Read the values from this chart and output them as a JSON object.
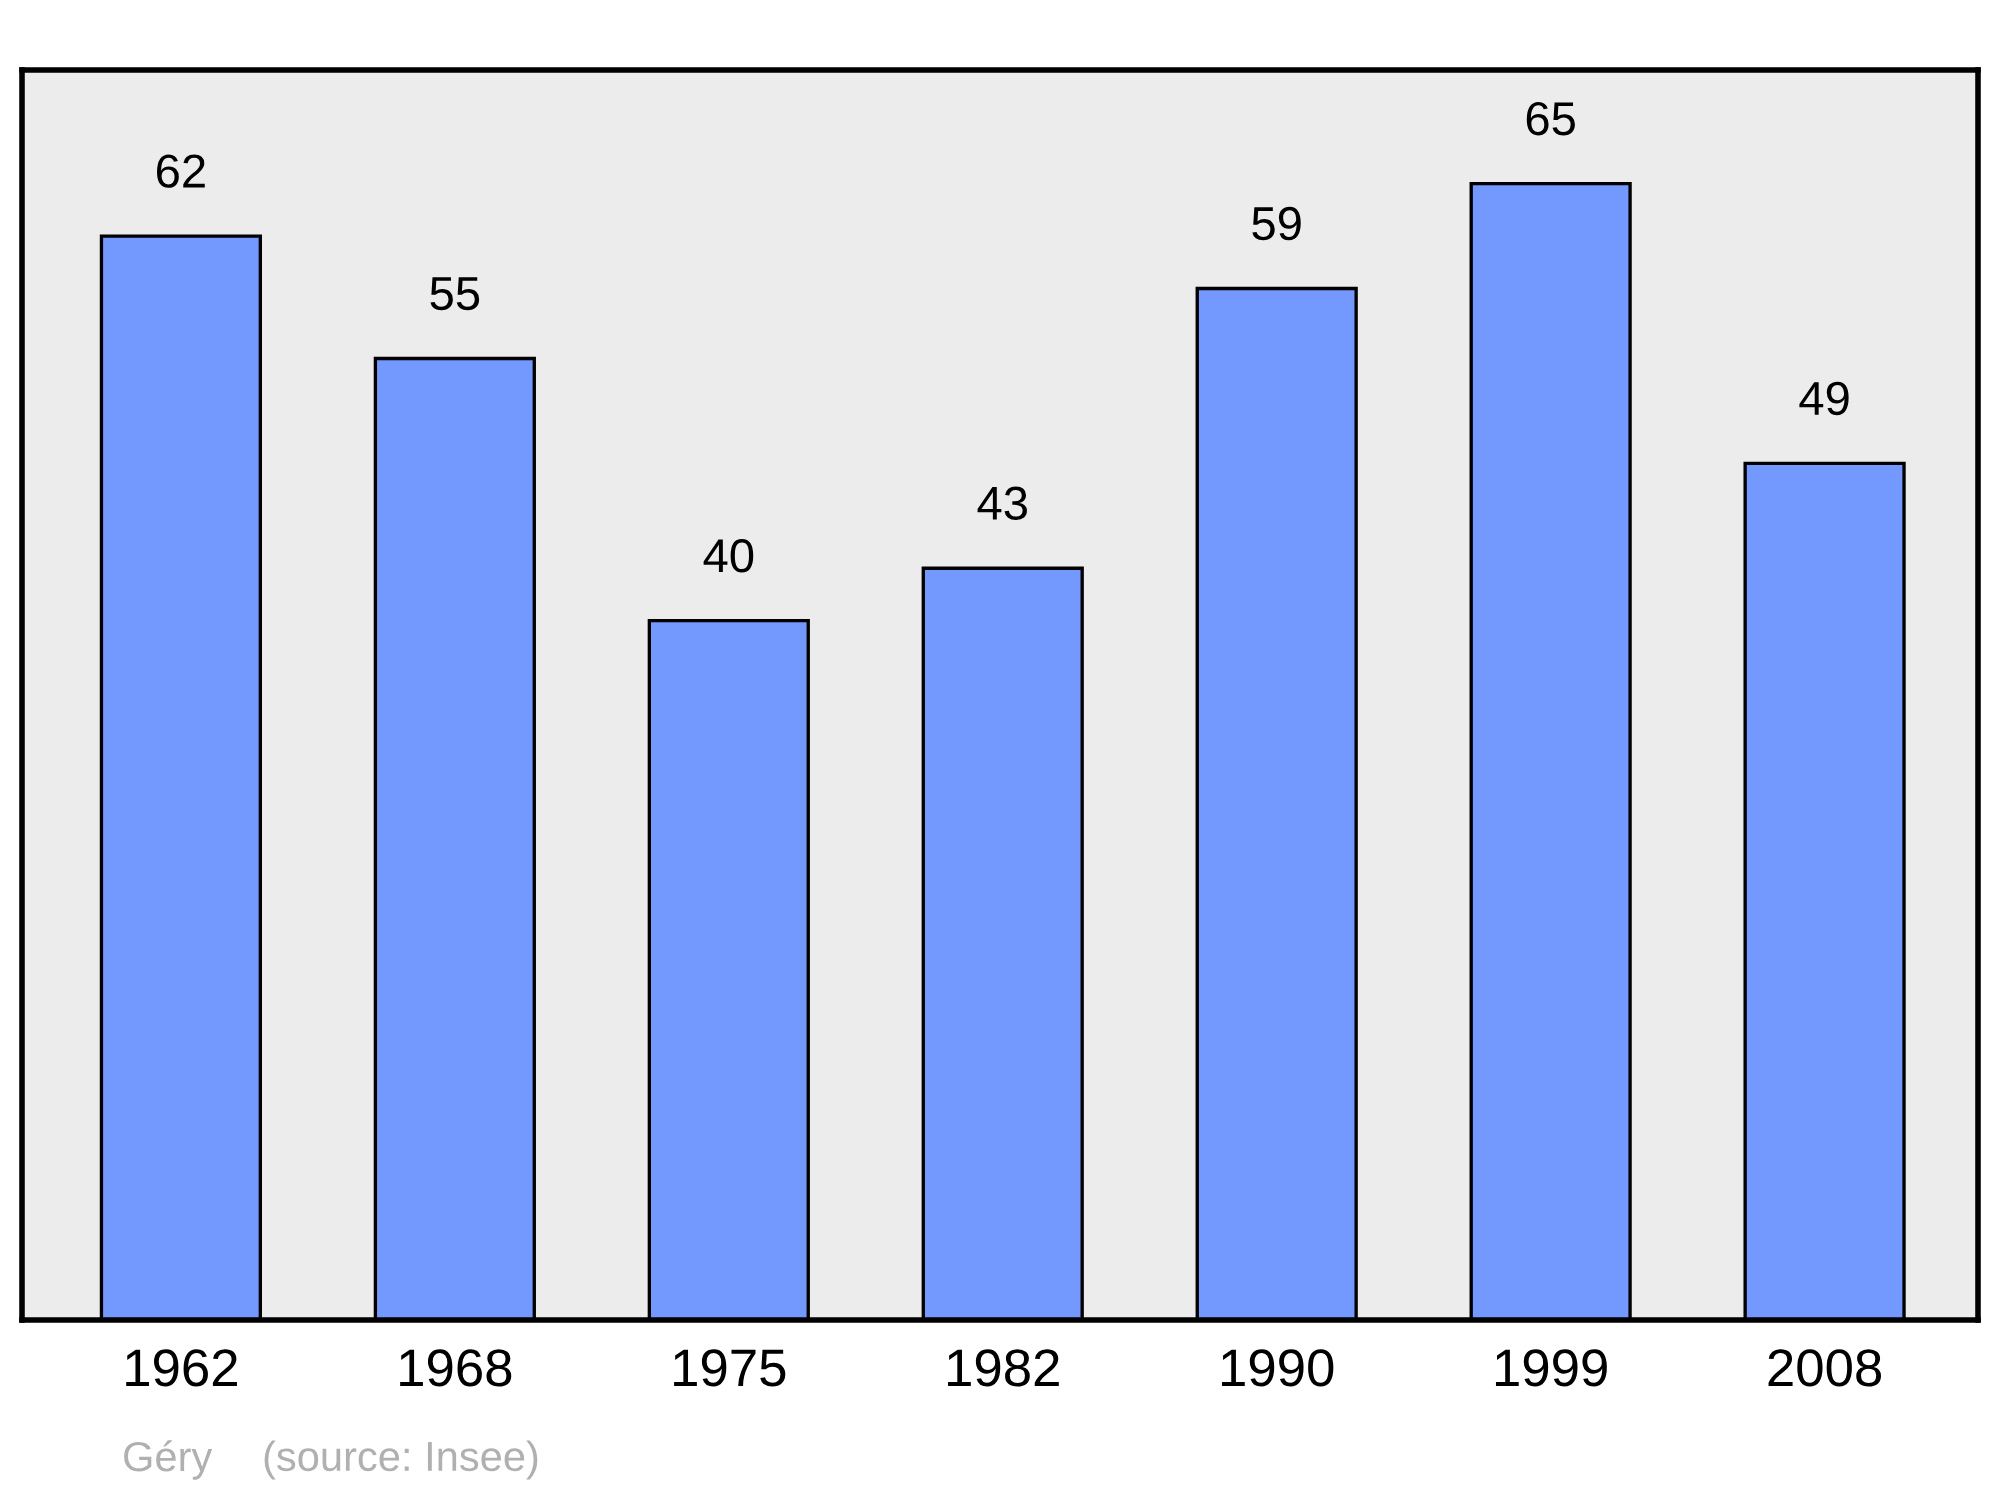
{
  "chart_data": {
    "type": "bar",
    "categories": [
      "1962",
      "1968",
      "1975",
      "1982",
      "1990",
      "1999",
      "2008"
    ],
    "values": [
      62,
      55,
      40,
      43,
      59,
      65,
      49
    ],
    "color": "#7399ff",
    "ylim": [
      0,
      71.5
    ],
    "tick_labels": "x",
    "data_labels": true,
    "grid": false,
    "legend": false,
    "annotations": [
      "Géry",
      "(source: Insee)"
    ]
  }
}
